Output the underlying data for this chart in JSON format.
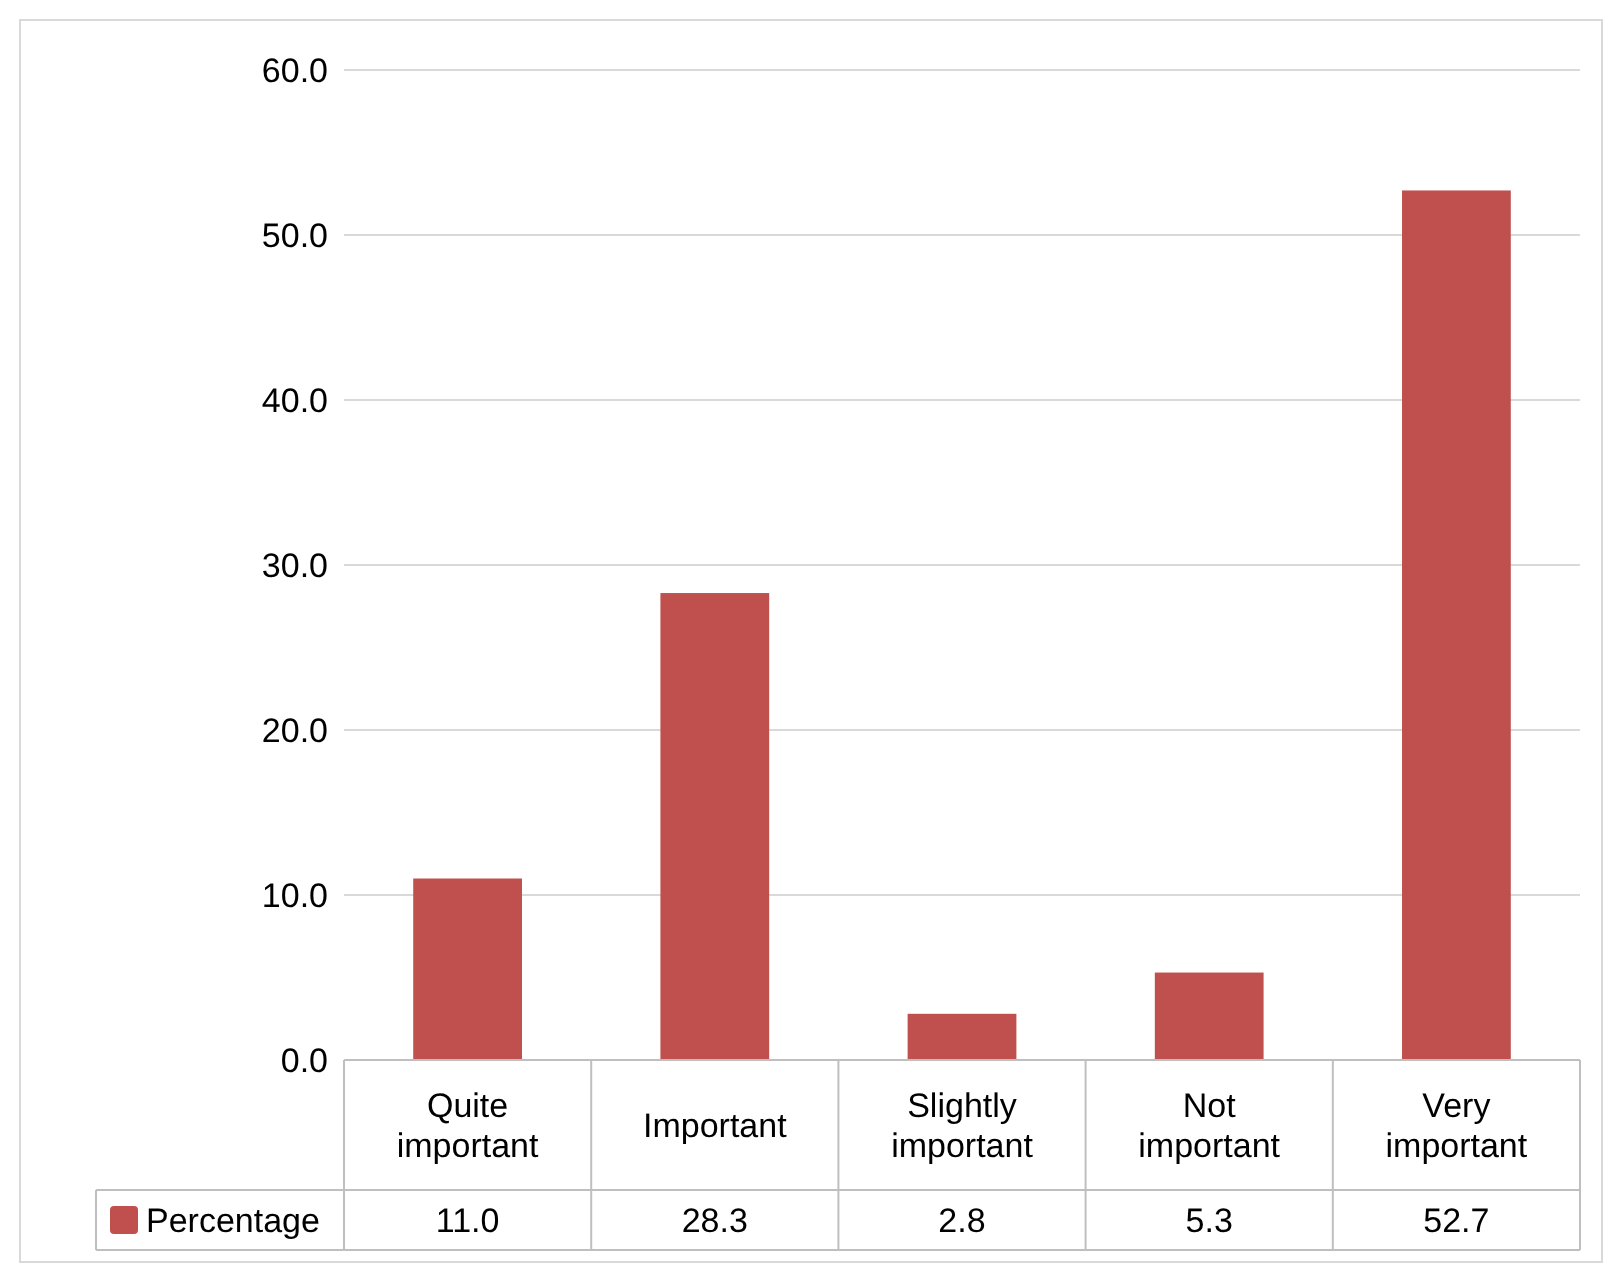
{
  "chart_data": {
    "type": "bar",
    "categories": [
      "Quite important",
      "Important",
      "Slightly important",
      "Not important",
      "Very important"
    ],
    "series": [
      {
        "name": "Percentage",
        "color": "#c0504d",
        "values": [
          11.0,
          28.3,
          2.8,
          5.3,
          52.7
        ],
        "value_labels": [
          "11.0",
          "28.3",
          "2.8",
          "5.3",
          "52.7"
        ]
      }
    ],
    "ylim": [
      0,
      60
    ],
    "yticks": [
      {
        "value": 0,
        "label": "0.0"
      },
      {
        "value": 10,
        "label": "10.0"
      },
      {
        "value": 20,
        "label": "20.0"
      },
      {
        "value": 30,
        "label": "30.0"
      },
      {
        "value": 40,
        "label": "40.0"
      },
      {
        "value": 50,
        "label": "50.0"
      },
      {
        "value": 60,
        "label": "60.0"
      }
    ],
    "grid": "y",
    "legend": "bottom"
  }
}
